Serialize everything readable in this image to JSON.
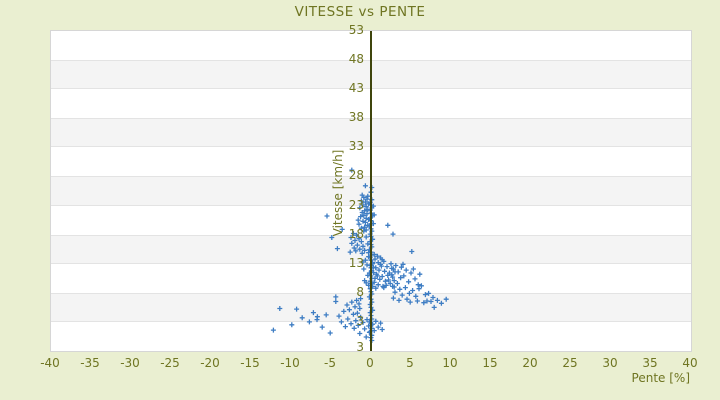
{
  "title": "VITESSE vs PENTE",
  "colors": {
    "background": "#eaefd1",
    "text_olive": "#6f7522",
    "zero_axis": "#3f450d",
    "marker_blue": "#3e7dc3",
    "band_gray": "#f4f4f4",
    "band_white": "#ffffff",
    "plot_border": "#d6d6d6"
  },
  "chart_data": {
    "type": "scatter",
    "title": "VITESSE vs PENTE",
    "xlabel": "Pente [%]",
    "ylabel": "Vitesse [km/h]",
    "xlim": [
      -40,
      40
    ],
    "ylim": [
      -2,
      53
    ],
    "x_ticks": [
      -40,
      -35,
      -30,
      -25,
      -20,
      -15,
      -10,
      -5,
      0,
      5,
      10,
      15,
      20,
      25,
      30,
      35,
      40
    ],
    "y_ticks": [
      53,
      48,
      43,
      38,
      33,
      28,
      23,
      18,
      13,
      8,
      3
    ],
    "y_axis_min_label": "3",
    "grid": "horizontal-bands-alternating",
    "legend": "none",
    "marker": "plus",
    "points": [
      [
        -0.1,
        1.3
      ],
      [
        0.1,
        1.9
      ],
      [
        0,
        2.4
      ],
      [
        -0.2,
        3
      ],
      [
        0.1,
        3.5
      ],
      [
        0,
        4.1
      ],
      [
        -0.1,
        4.6
      ],
      [
        0.2,
        5
      ],
      [
        0,
        5.5
      ],
      [
        -0.1,
        6
      ],
      [
        0.1,
        6.4
      ],
      [
        0,
        6.9
      ],
      [
        -0.2,
        7.3
      ],
      [
        0.1,
        7.8
      ],
      [
        0,
        8.2
      ],
      [
        -0.1,
        8.7
      ],
      [
        0.2,
        9.1
      ],
      [
        0,
        9.6
      ],
      [
        -0.1,
        10
      ],
      [
        0.1,
        10.5
      ],
      [
        0,
        10.9
      ],
      [
        -0.2,
        11.4
      ],
      [
        0.1,
        11.8
      ],
      [
        0,
        12.3
      ],
      [
        -0.1,
        12.7
      ],
      [
        0.2,
        13.2
      ],
      [
        0,
        13.6
      ],
      [
        -0.1,
        14.1
      ],
      [
        0.1,
        14.5
      ],
      [
        0,
        15
      ],
      [
        -0.2,
        15.4
      ],
      [
        0.1,
        15.9
      ],
      [
        0,
        16.3
      ],
      [
        -0.1,
        16.8
      ],
      [
        0.2,
        17.2
      ],
      [
        0,
        17.7
      ],
      [
        -0.1,
        18.1
      ],
      [
        0.1,
        18.6
      ],
      [
        0,
        19
      ],
      [
        -0.2,
        19.5
      ],
      [
        0.1,
        19.9
      ],
      [
        0,
        20.4
      ],
      [
        -0.1,
        20.8
      ],
      [
        0.2,
        21.3
      ],
      [
        0,
        21.7
      ],
      [
        -0.1,
        22.2
      ],
      [
        0.1,
        22.6
      ],
      [
        0,
        23.1
      ],
      [
        -0.1,
        23.5
      ],
      [
        0.1,
        24
      ],
      [
        -0.9,
        24.4
      ],
      [
        -0.5,
        24.1
      ],
      [
        -1.2,
        23.8
      ],
      [
        -0.7,
        23.6
      ],
      [
        -0.3,
        23.3
      ],
      [
        -1,
        23.1
      ],
      [
        -0.6,
        22.8
      ],
      [
        -1.4,
        22.6
      ],
      [
        -0.4,
        22.3
      ],
      [
        -0.8,
        22.1
      ],
      [
        -1.1,
        21.8
      ],
      [
        -0.5,
        21.6
      ],
      [
        -0.9,
        21.3
      ],
      [
        -1.3,
        21.1
      ],
      [
        -0.6,
        20.8
      ],
      [
        -0.3,
        20.6
      ],
      [
        -1,
        20.3
      ],
      [
        -0.7,
        20.1
      ],
      [
        -1.5,
        19.8
      ],
      [
        -0.4,
        19.6
      ],
      [
        -0.8,
        19.3
      ],
      [
        -1.2,
        19.1
      ],
      [
        -0.6,
        18.8
      ],
      [
        -0.9,
        18.6
      ],
      [
        0.3,
        22.9
      ],
      [
        0.4,
        21.4
      ],
      [
        0.3,
        19.9
      ],
      [
        -1.6,
        20.5
      ],
      [
        -2.4,
        29.1
      ],
      [
        -0.7,
        26.4
      ],
      [
        -1.1,
        24.8
      ],
      [
        -0.4,
        24.6
      ],
      [
        0.1,
        26.1
      ],
      [
        0,
        25.3
      ],
      [
        -2.2,
        18.2
      ],
      [
        -1.8,
        17.9
      ],
      [
        -2.5,
        17.5
      ],
      [
        -1.5,
        17.3
      ],
      [
        -2,
        17
      ],
      [
        -1.2,
        16.8
      ],
      [
        -2.4,
        16.5
      ],
      [
        -1.7,
        16.2
      ],
      [
        -1,
        16
      ],
      [
        -2.1,
        15.7
      ],
      [
        -1.4,
        15.5
      ],
      [
        -1.9,
        15.2
      ],
      [
        -2.6,
        15
      ],
      [
        -1.1,
        14.8
      ],
      [
        -0.6,
        17.6
      ],
      [
        -0.4,
        16.4
      ],
      [
        -0.8,
        15.3
      ],
      [
        -0.3,
        14.9
      ],
      [
        -5.5,
        21.2
      ],
      [
        -4.9,
        17.5
      ],
      [
        -3.6,
        18.9
      ],
      [
        -4.2,
        15.6
      ],
      [
        0.4,
        14.6
      ],
      [
        0.8,
        14.3
      ],
      [
        -0.3,
        14.2
      ],
      [
        1.2,
        14
      ],
      [
        0.5,
        13.8
      ],
      [
        -0.7,
        13.6
      ],
      [
        1.6,
        13.4
      ],
      [
        0.9,
        13.2
      ],
      [
        0.2,
        13
      ],
      [
        -0.5,
        12.8
      ],
      [
        1.3,
        12.6
      ],
      [
        2,
        12.5
      ],
      [
        0.6,
        12.3
      ],
      [
        -0.9,
        12.1
      ],
      [
        1,
        11.9
      ],
      [
        1.7,
        11.7
      ],
      [
        0.3,
        11.5
      ],
      [
        2.3,
        11.4
      ],
      [
        0.7,
        11.2
      ],
      [
        -0.4,
        11
      ],
      [
        1.4,
        10.8
      ],
      [
        2.7,
        10.7
      ],
      [
        0.5,
        10.5
      ],
      [
        1.1,
        10.3
      ],
      [
        -0.8,
        10.1
      ],
      [
        1.8,
        10
      ],
      [
        0.4,
        9.8
      ],
      [
        2.4,
        9.6
      ],
      [
        0.9,
        9.4
      ],
      [
        -0.3,
        9.3
      ],
      [
        1.5,
        9.1
      ],
      [
        2.9,
        9
      ],
      [
        0.6,
        8.8
      ],
      [
        1.2,
        12.9
      ],
      [
        2.1,
        11
      ],
      [
        -0.6,
        9.7
      ],
      [
        1.9,
        9.3
      ],
      [
        2.6,
        12.2
      ],
      [
        0.8,
        10.9
      ],
      [
        1.4,
        13.7
      ],
      [
        -1,
        13.3
      ],
      [
        2.2,
        10.2
      ],
      [
        3,
        11.6
      ],
      [
        1.6,
        8.9
      ],
      [
        0.3,
        12.4
      ],
      [
        2.5,
        13
      ],
      [
        3.1,
        12.7
      ],
      [
        3.8,
        12.4
      ],
      [
        2.8,
        12.1
      ],
      [
        4.4,
        11.9
      ],
      [
        3.4,
        11.6
      ],
      [
        5,
        11.4
      ],
      [
        2.6,
        11.1
      ],
      [
        4.1,
        10.9
      ],
      [
        3.7,
        10.6
      ],
      [
        5.5,
        10.4
      ],
      [
        2.9,
        10.1
      ],
      [
        4.7,
        9.9
      ],
      [
        3.3,
        9.6
      ],
      [
        5.9,
        9.4
      ],
      [
        2.7,
        9.1
      ],
      [
        4.3,
        8.9
      ],
      [
        3.6,
        8.6
      ],
      [
        5.2,
        8.4
      ],
      [
        6.3,
        9.2
      ],
      [
        3,
        8.1
      ],
      [
        4.8,
        7.9
      ],
      [
        3.9,
        7.6
      ],
      [
        5.6,
        7.4
      ],
      [
        2.8,
        7.1
      ],
      [
        4.5,
        6.9
      ],
      [
        6,
        8.7
      ],
      [
        6.6,
        6.3
      ],
      [
        4,
        12.9
      ],
      [
        5.3,
        12.1
      ],
      [
        6.1,
        11.2
      ],
      [
        6.8,
        7.7
      ],
      [
        5.8,
        6.6
      ],
      [
        4.9,
        6.4
      ],
      [
        3.5,
        6.7
      ],
      [
        7.2,
        7.9
      ],
      [
        7.75,
        7.2
      ],
      [
        8.3,
        6.7
      ],
      [
        9.4,
        6.9
      ],
      [
        7.9,
        5.5
      ],
      [
        7.5,
        6.5
      ],
      [
        8.8,
        6.2
      ],
      [
        7,
        6.6
      ],
      [
        2.1,
        19.6
      ],
      [
        2.75,
        18.1
      ],
      [
        5.1,
        15.1
      ],
      [
        -1.3,
        7
      ],
      [
        -1.8,
        6.7
      ],
      [
        -2.4,
        6.4
      ],
      [
        -1.5,
        6.1
      ],
      [
        -3,
        5.9
      ],
      [
        -2,
        5.6
      ],
      [
        -1.4,
        5.3
      ],
      [
        -2.7,
        5.1
      ],
      [
        -3.4,
        4.8
      ],
      [
        -1.7,
        4.5
      ],
      [
        -2.2,
        4.3
      ],
      [
        -4,
        4
      ],
      [
        -1.3,
        3.8
      ],
      [
        -2.9,
        3.5
      ],
      [
        -1.9,
        3.2
      ],
      [
        -3.7,
        3
      ],
      [
        -2.5,
        2.7
      ],
      [
        -1.6,
        2.4
      ],
      [
        -3.2,
        2.2
      ],
      [
        -2.1,
        1.9
      ],
      [
        -4.4,
        7.3
      ],
      [
        -4.4,
        6.5
      ],
      [
        -11.4,
        5.3
      ],
      [
        -9.3,
        5.2
      ],
      [
        -12.2,
        1.6
      ],
      [
        -8.6,
        3.7
      ],
      [
        -7.7,
        3
      ],
      [
        -6.75,
        3.4
      ],
      [
        -6.7,
        3.9
      ],
      [
        -5.6,
        4.2
      ],
      [
        -5.1,
        1.1
      ],
      [
        -9.9,
        2.5
      ],
      [
        -7.2,
        4.6
      ],
      [
        -6.1,
        2.1
      ],
      [
        -0.5,
        3.4
      ],
      [
        0.6,
        3.1
      ],
      [
        -1,
        2.9
      ],
      [
        0.2,
        2.6
      ],
      [
        -0.3,
        2.3
      ],
      [
        0.9,
        2.1
      ],
      [
        -0.8,
        1.8
      ],
      [
        0.4,
        1.5
      ],
      [
        -0.2,
        1.2
      ],
      [
        1.2,
        2.8
      ],
      [
        -1.4,
        1
      ],
      [
        0.1,
        0.7
      ],
      [
        -0.6,
        0.4
      ],
      [
        1.4,
        1.7
      ],
      [
        0,
        0.3
      ],
      [
        0.1,
        -0.2
      ]
    ]
  }
}
